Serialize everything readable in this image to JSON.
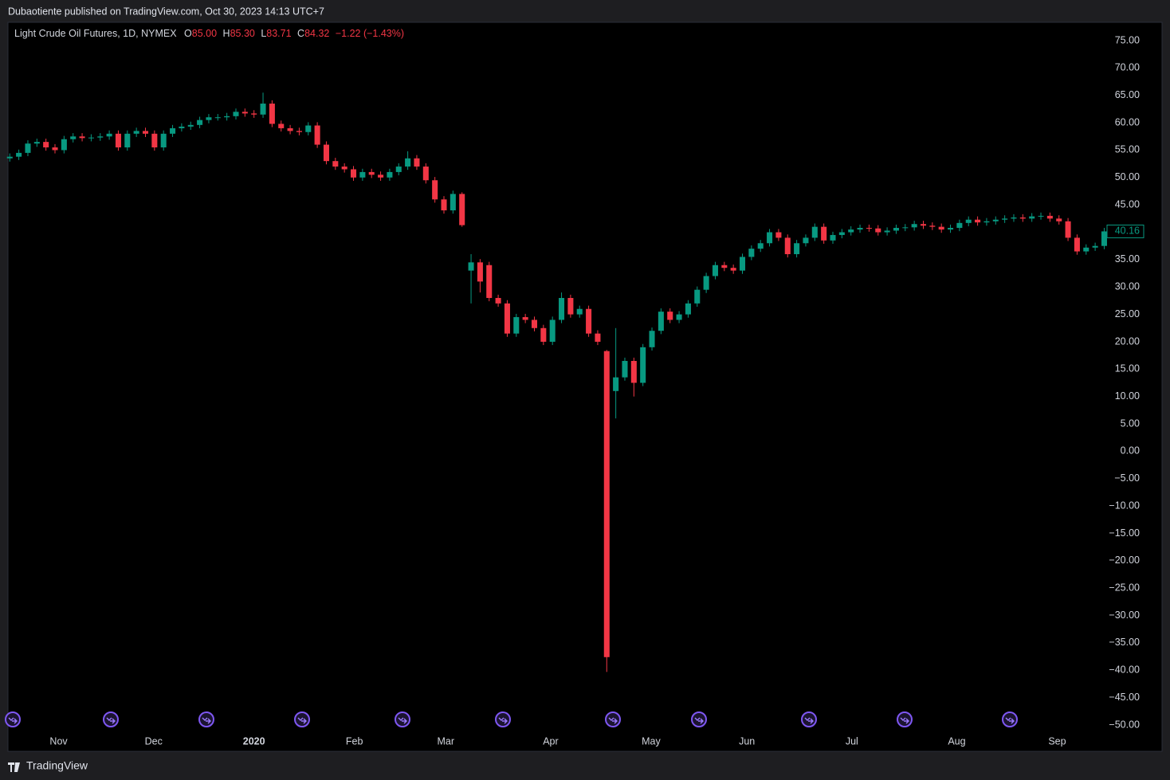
{
  "header": {
    "publisher": "Dubaotiente published on TradingView.com, Oct 30, 2023 14:13 UTC+7"
  },
  "footer": {
    "brand": "TradingView"
  },
  "chart_data": {
    "type": "candlestick",
    "title": "Light Crude Oil Futures, 1D, NYMEX",
    "legend": {
      "open_label": "O",
      "open": "85.00",
      "high_label": "H",
      "high": "85.30",
      "low_label": "L",
      "low": "83.71",
      "close_label": "C",
      "close": "84.32",
      "change": "−1.22 (−1.43%)"
    },
    "up_color": "#089981",
    "down_color": "#f23645",
    "open": [
      53.5,
      53.8,
      54.5,
      56.2,
      56.5,
      55.5,
      55,
      57,
      57.5,
      57.2,
      57.3,
      57.5,
      58,
      55.5,
      58,
      58.5,
      58,
      55.5,
      58,
      59,
      59.3,
      59.6,
      60.5,
      61,
      61,
      61.2,
      62,
      61.7,
      61.5,
      63.5,
      59.8,
      59,
      58.5,
      58.3,
      59.5,
      56,
      53,
      52,
      51.5,
      50,
      51,
      50.5,
      50,
      51,
      52,
      53.5,
      52,
      49.5,
      46,
      44,
      47,
      33,
      34.5,
      34,
      28,
      27,
      21.5,
      24.5,
      24,
      22.5,
      20,
      24,
      28,
      25,
      26,
      21.5,
      18.3,
      11,
      13.5,
      16.5,
      12.5,
      19,
      22,
      25.5,
      24,
      25,
      27,
      29.5,
      32,
      34,
      33.5,
      33,
      35.5,
      37,
      38,
      40,
      39,
      36,
      38,
      39,
      41,
      38.5,
      39.5,
      40,
      40.5,
      40.8,
      40.7,
      40,
      40.3,
      40.8,
      40.9,
      41.5,
      41.2,
      41,
      40.5,
      40.8,
      41.7,
      42.3,
      41.8,
      42,
      42.3,
      42.5,
      42.7,
      42.5,
      42.9,
      43,
      42.5,
      42,
      39,
      36.5,
      37.2,
      37.5
    ],
    "high": [
      54.4,
      55.1,
      56.8,
      57.1,
      57.1,
      56.1,
      57.6,
      58.1,
      58.1,
      57.9,
      58.1,
      58.6,
      58.6,
      58.6,
      59.1,
      59.1,
      58.6,
      58.6,
      59.6,
      59.9,
      60.2,
      61.1,
      61.6,
      61.6,
      61.8,
      62.6,
      62.6,
      62.3,
      65.5,
      64.1,
      60.4,
      59.6,
      59.1,
      60.1,
      60.1,
      56.6,
      53.6,
      52.6,
      52.1,
      51.6,
      51.6,
      51.1,
      51.6,
      52.6,
      54.8,
      54.1,
      52.6,
      50.1,
      46.6,
      47.6,
      47.3,
      36,
      35.1,
      34.6,
      28.6,
      27.6,
      25.1,
      25.1,
      24.6,
      23.1,
      24.6,
      29,
      28.6,
      26.6,
      26.6,
      22.1,
      18.5,
      22.5,
      17.1,
      17.1,
      19.6,
      22.6,
      26.1,
      26.1,
      25.6,
      27.6,
      30.1,
      32.6,
      34.6,
      34.6,
      34.1,
      36.1,
      37.6,
      38.6,
      40.6,
      40.6,
      39.6,
      38.6,
      39.6,
      41.6,
      41.6,
      40.1,
      40.6,
      41.1,
      41.4,
      41.4,
      41.3,
      40.9,
      41.4,
      41.5,
      42.1,
      42.1,
      41.8,
      41.6,
      41.4,
      42.3,
      42.9,
      42.9,
      42.6,
      42.9,
      43.1,
      43.3,
      43.3,
      43.5,
      43.6,
      43.6,
      43.1,
      42.6,
      39.6,
      37.8,
      38.1,
      40.8
    ],
    "low": [
      52.9,
      53.2,
      53.9,
      55.6,
      54.9,
      54.4,
      54.4,
      56.4,
      56.6,
      56.6,
      56.7,
      56.9,
      54.9,
      54.9,
      57.4,
      57.4,
      54.9,
      54.9,
      57.4,
      58.4,
      58.7,
      59,
      59.9,
      60.4,
      60.4,
      60.6,
      61.1,
      60.9,
      60.9,
      59.2,
      58.4,
      57.9,
      57.7,
      57.7,
      55.4,
      52.4,
      51.4,
      50.9,
      49.4,
      49.4,
      49.9,
      49.4,
      49.4,
      50.4,
      51.4,
      51.4,
      48.9,
      45.4,
      43.4,
      43.4,
      41,
      27,
      29,
      27.4,
      26.4,
      20.9,
      20.9,
      23.4,
      21.9,
      19.4,
      19.4,
      23.4,
      24.4,
      24.4,
      20.9,
      19.4,
      -40.3,
      6,
      12.9,
      10,
      11.9,
      18.4,
      21.4,
      23.4,
      23.4,
      24.4,
      26.4,
      28.9,
      31.4,
      32.9,
      32.4,
      32.4,
      34.9,
      36.4,
      37.4,
      38.4,
      35.4,
      35.4,
      37.4,
      38.4,
      37.9,
      37.9,
      38.9,
      39.4,
      39.9,
      40.1,
      39.4,
      39.4,
      39.7,
      40.2,
      40.3,
      40.6,
      40.4,
      39.9,
      39.9,
      40.2,
      41.1,
      41.2,
      41.2,
      41.4,
      41.7,
      41.9,
      41.9,
      41.9,
      42.3,
      41.9,
      41.4,
      38.4,
      35.9,
      35.9,
      36.6,
      36.9
    ],
    "close": [
      53.8,
      54.5,
      56.2,
      56.5,
      55.5,
      55,
      57,
      57.5,
      57.2,
      57.3,
      57.5,
      58,
      55.5,
      58,
      58.5,
      58,
      55.5,
      58,
      59,
      59.3,
      59.6,
      60.5,
      61,
      61,
      61.2,
      62,
      61.7,
      61.5,
      63.5,
      59.8,
      59,
      58.5,
      58.3,
      59.5,
      56,
      53,
      52,
      51.5,
      50,
      51,
      50.5,
      50,
      51,
      52,
      53.5,
      52,
      49.5,
      46,
      44,
      47,
      41.3,
      34.5,
      31,
      28,
      27,
      21.5,
      24.5,
      24,
      22.5,
      20,
      24,
      28,
      25,
      26,
      21.5,
      20,
      -37.6,
      13.5,
      16.5,
      12.5,
      19,
      22,
      25.5,
      24,
      25,
      27,
      29.5,
      32,
      34,
      33.5,
      33,
      35.5,
      37,
      38,
      40,
      39,
      36,
      38,
      39,
      41,
      38.5,
      39.5,
      40,
      40.5,
      40.8,
      40.7,
      40,
      40.3,
      40.8,
      40.9,
      41.5,
      41.2,
      41,
      40.5,
      40.8,
      41.7,
      42.3,
      41.8,
      42,
      42.3,
      42.5,
      42.7,
      42.5,
      42.9,
      43,
      42.5,
      42,
      39,
      36.5,
      37.2,
      37.5,
      40.16
    ],
    "xlim": [
      -0.2,
      121.4
    ],
    "xticks": [
      {
        "value": 5.4,
        "label": "Nov"
      },
      {
        "value": 15.9,
        "label": "Dec"
      },
      {
        "value": 27,
        "label": "2020"
      },
      {
        "value": 38.1,
        "label": "Feb"
      },
      {
        "value": 48.2,
        "label": "Mar"
      },
      {
        "value": 59.8,
        "label": "Apr"
      },
      {
        "value": 70.9,
        "label": "May"
      },
      {
        "value": 81.5,
        "label": "Jun"
      },
      {
        "value": 93.1,
        "label": "Jul"
      },
      {
        "value": 104.7,
        "label": "Aug"
      },
      {
        "value": 115.8,
        "label": "Sep"
      }
    ],
    "ylim": [
      -50,
      75
    ],
    "yticks": [
      {
        "value": 75,
        "label": "75.00"
      },
      {
        "value": 70,
        "label": "70.00"
      },
      {
        "value": 65,
        "label": "65.00"
      },
      {
        "value": 60,
        "label": "60.00"
      },
      {
        "value": 55,
        "label": "55.00"
      },
      {
        "value": 50,
        "label": "50.00"
      },
      {
        "value": 45,
        "label": "45.00"
      },
      {
        "value": 40,
        "label": "40.00"
      },
      {
        "value": 35,
        "label": "35.00"
      },
      {
        "value": 30,
        "label": "30.00"
      },
      {
        "value": 25,
        "label": "25.00"
      },
      {
        "value": 20,
        "label": "20.00"
      },
      {
        "value": 15,
        "label": "15.00"
      },
      {
        "value": 10,
        "label": "10.00"
      },
      {
        "value": 5,
        "label": "5.00"
      },
      {
        "value": 0,
        "label": "0.00"
      },
      {
        "value": -5,
        "label": "−5.00"
      },
      {
        "value": -10,
        "label": "−10.00"
      },
      {
        "value": -15,
        "label": "−15.00"
      },
      {
        "value": -20,
        "label": "−20.00"
      },
      {
        "value": -25,
        "label": "−25.00"
      },
      {
        "value": -30,
        "label": "−30.00"
      },
      {
        "value": -35,
        "label": "−35.00"
      },
      {
        "value": -40,
        "label": "−40.00"
      },
      {
        "value": -45,
        "label": "−45.00"
      },
      {
        "value": -50,
        "label": "−50.00"
      }
    ],
    "grid": false
  }
}
